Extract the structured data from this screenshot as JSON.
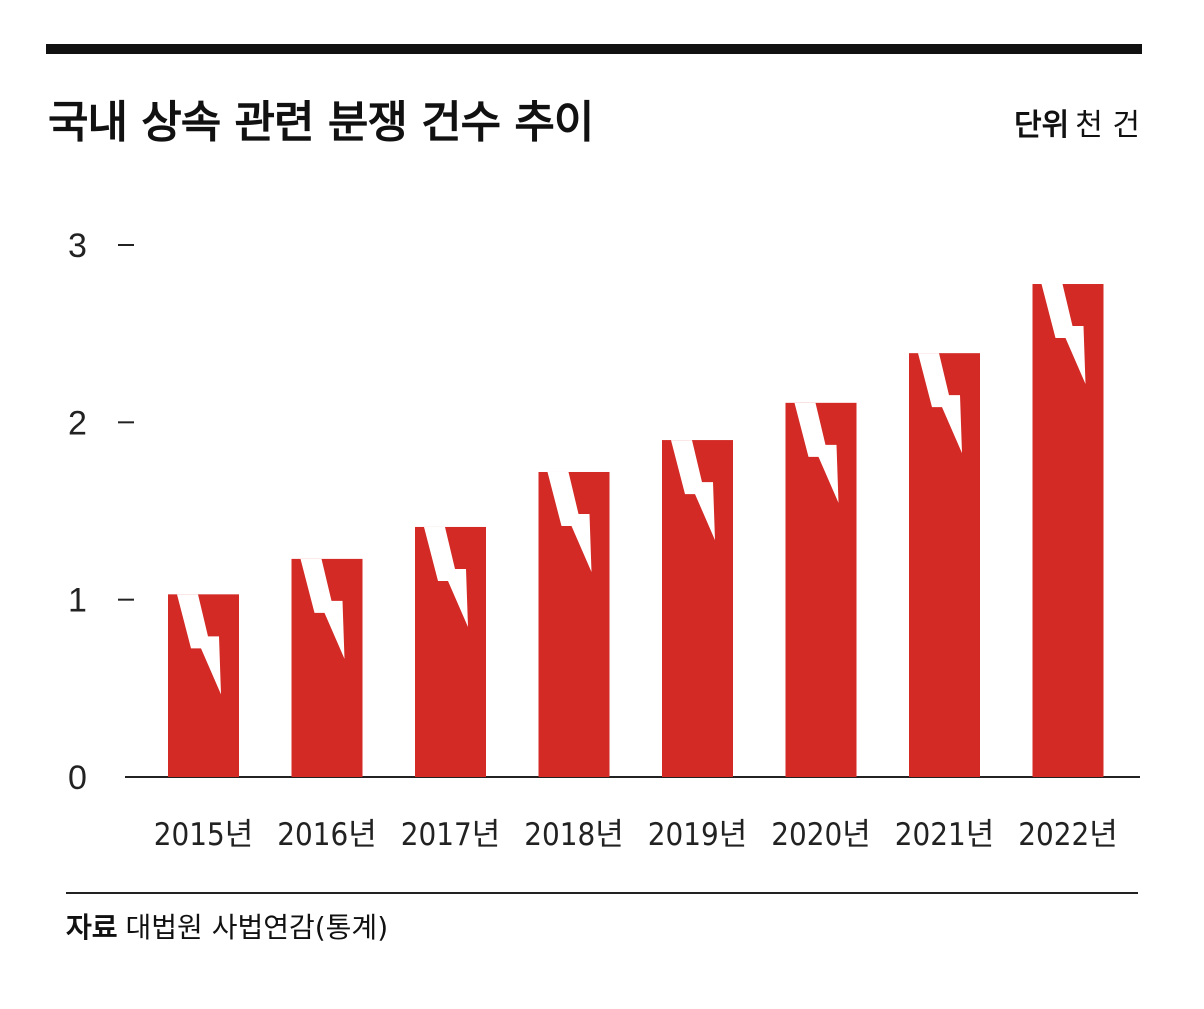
{
  "header": {
    "title": "국내 상속 관련 분쟁 건수 추이",
    "unit_key": "단위",
    "unit_value": "천 건"
  },
  "footer": {
    "source_key": "자료",
    "source_value": "대법원 사법연감(통계)"
  },
  "colors": {
    "bar": "#d32a25",
    "bolt": "#ffffff",
    "axis": "#222222"
  },
  "chart_data": {
    "type": "bar",
    "title": "국내 상속 관련 분쟁 건수 추이",
    "ylabel": "단위 천 건",
    "categories": [
      "2015년",
      "2016년",
      "2017년",
      "2018년",
      "2019년",
      "2020년",
      "2021년",
      "2022년"
    ],
    "values": [
      1.03,
      1.23,
      1.41,
      1.72,
      1.9,
      2.11,
      2.39,
      2.78
    ],
    "ylim": [
      0,
      3
    ],
    "yticks": [
      "0",
      "1",
      "2",
      "3"
    ],
    "grid": false,
    "bar_icon": "lightning-bolt-icon"
  }
}
